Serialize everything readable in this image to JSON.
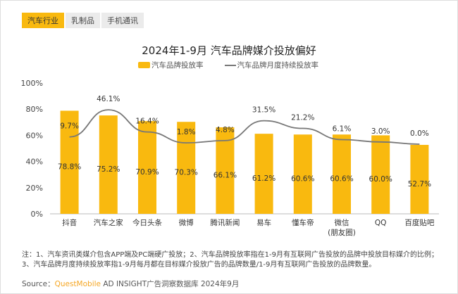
{
  "tabs": [
    {
      "label": "汽车行业",
      "active": true
    },
    {
      "label": "乳制品"
    },
    {
      "label": "手机通讯"
    }
  ],
  "chart_data": {
    "type": "bar+line",
    "title": "2024年1-9月 汽车品牌媒介投放偏好",
    "categories": [
      "抖音",
      "汽车之家",
      "今日头条",
      "微博",
      "腾讯新闻",
      "易车",
      "懂车帝",
      "微信\n(朋友圈)",
      "QQ",
      "百度贴吧"
    ],
    "series": [
      {
        "name": "汽车品牌投放率",
        "type": "bar",
        "values": [
          78.8,
          75.2,
          70.9,
          70.3,
          66.1,
          61.2,
          60.6,
          60.6,
          60.0,
          52.7
        ],
        "labels": [
          "78.8%",
          "75.2%",
          "70.9%",
          "70.3%",
          "66.1%",
          "61.2%",
          "60.6%",
          "60.6%",
          "60.0%",
          "52.7%"
        ],
        "color": "#f9b90f"
      },
      {
        "name": "汽车品牌月度持续投放率",
        "type": "line",
        "values": [
          9.7,
          46.1,
          16.4,
          1.8,
          4.8,
          31.5,
          21.2,
          6.1,
          3.0,
          0.0
        ],
        "labels": [
          "9.7%",
          "46.1%",
          "16.4%",
          "1.8%",
          "4.8%",
          "31.5%",
          "21.2%",
          "6.1%",
          "3.0%",
          "0.0%"
        ],
        "color": "#777777"
      }
    ],
    "yticks": [
      "0%",
      "20%",
      "40%",
      "60%",
      "80%",
      "100%"
    ],
    "ylim": [
      0,
      100
    ],
    "grid": false,
    "legend": "top"
  },
  "note": "注：1、汽车资讯类媒介包含APP端及PC端硬广投放；2、汽车品牌投放率指在1-9月有互联网广告投放的品牌中投放目标媒介的比例；3、汽车品牌月度持续投放率指1-9月每月都在目标媒介投放广告的品牌数量/1-9月有互联网广告投放的品牌数量。",
  "source": {
    "prefix": "Source：",
    "brand": "QuestMobile",
    "rest": " AD INSIGHT广告洞察数据库 2024年9月"
  }
}
